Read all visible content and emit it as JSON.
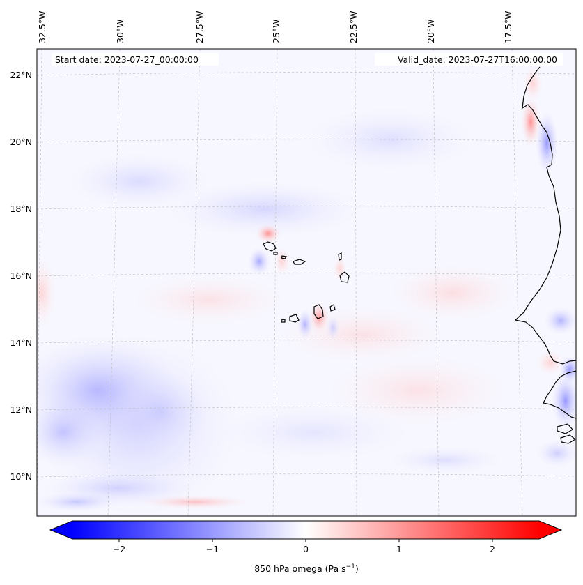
{
  "map": {
    "title_left": "Start date: 2023-07-27_00:00:00",
    "title_right": "Valid_date: 2023-07-27T16:00:00.00",
    "lon_labels": [
      "32.5°W",
      "30°W",
      "27.5°W",
      "25°W",
      "22.5°W",
      "20°W",
      "17.5°W"
    ],
    "lat_labels": [
      "22°N",
      "20°N",
      "18°N",
      "16°N",
      "14°N",
      "12°N",
      "10°N"
    ],
    "field": "850 hPa omega",
    "colors": {
      "negative": "#0000ff",
      "neutral": "#ffffff",
      "positive": "#ff0000",
      "coast": "#000000",
      "grid": "#bbbbbb"
    }
  },
  "colorbar": {
    "label_main": "850 hPa omega (Pa s",
    "label_exp": "−1",
    "label_close": ")",
    "ticks": [
      "−2",
      "−1",
      "0",
      "1",
      "2"
    ],
    "tick_values": [
      -2,
      -1,
      0,
      1,
      2
    ],
    "range": [
      -2.5,
      2.5
    ],
    "extend": "both"
  }
}
